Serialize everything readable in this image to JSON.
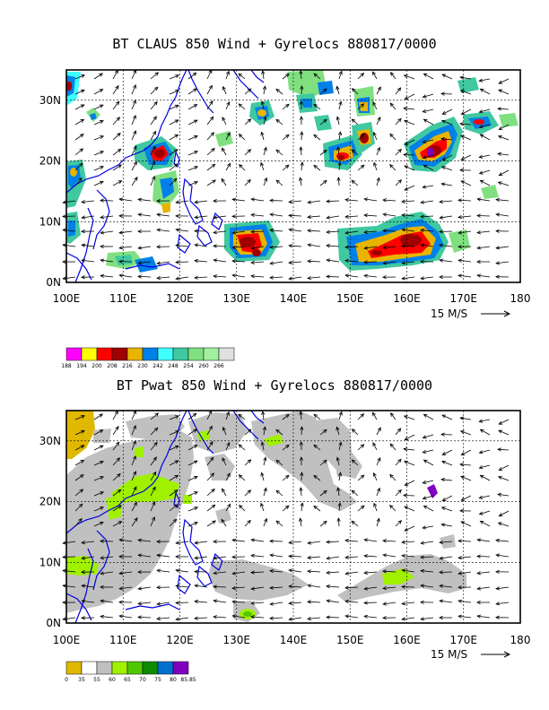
{
  "panels": [
    {
      "title": "BT CLAUS 850 Wind + Gyrelocs 880817/0000",
      "lon_labels": [
        "100E",
        "110E",
        "120E",
        "130E",
        "140E",
        "150E",
        "160E",
        "170E",
        "180"
      ],
      "lat_labels": [
        "0N",
        "10N",
        "20N",
        "30N"
      ],
      "vector_scale": "15 M/S",
      "colorbar": {
        "colors": [
          "#ff00ff",
          "#ffff00",
          "#ff0000",
          "#a00000",
          "#e8b400",
          "#0080e8",
          "#40ffff",
          "#40c8a0",
          "#80e080",
          "#a0f0a0",
          "#e0e0e0"
        ],
        "labels": [
          "188",
          "194",
          "200",
          "208",
          "216",
          "230",
          "242",
          "248",
          "254",
          "260",
          "266"
        ]
      }
    },
    {
      "title": "BT Pwat 850 Wind + Gyrelocs 880817/0000",
      "lon_labels": [
        "100E",
        "110E",
        "120E",
        "130E",
        "140E",
        "150E",
        "160E",
        "170E",
        "180"
      ],
      "lat_labels": [
        "0N",
        "10N",
        "20N",
        "30N"
      ],
      "vector_scale": "15 M/S",
      "colorbar": {
        "colors": [
          "#e0b800",
          "#ffffff",
          "#c0c0c0",
          "#a0f000",
          "#50c800",
          "#108a00",
          "#0070d0",
          "#8000c0"
        ],
        "labels": [
          "0",
          "35",
          "55",
          "60",
          "65",
          "70",
          "75",
          "80",
          "85.85"
        ]
      }
    }
  ],
  "colors": {
    "coast": "#0000e0",
    "frame": "#000000",
    "grid": "#000000"
  }
}
